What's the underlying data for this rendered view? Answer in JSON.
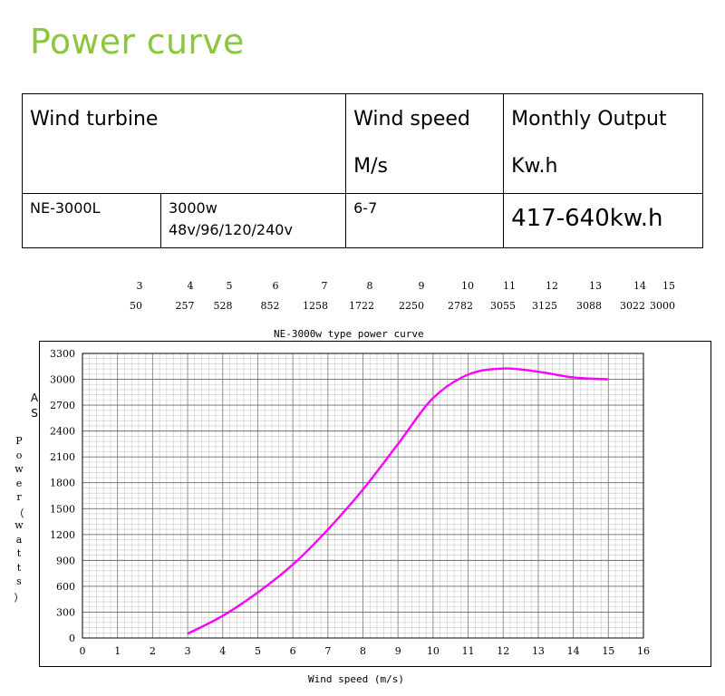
{
  "page": {
    "title": "Power curve"
  },
  "spec_table": {
    "headers": {
      "turbine": "Wind turbine",
      "speed": "Wind speed",
      "speed_unit": "M/s",
      "output": "Monthly Output",
      "output_unit": "Kw.h"
    },
    "row": {
      "model": "NE-3000L",
      "power": "3000w",
      "voltages": "48v/96/120/240v",
      "speed": "6-7",
      "output": "417-640kw.h"
    }
  },
  "reference": {
    "speeds": [
      "3",
      "4",
      "5",
      "6",
      "7",
      "8",
      "9",
      "10",
      "11",
      "12",
      "13",
      "14",
      "15"
    ],
    "powers": [
      "50",
      "257",
      "528",
      "852",
      "1258",
      "1722",
      "2250",
      "2782",
      "3055",
      "3125",
      "3088",
      "3022",
      "3000"
    ]
  },
  "chart_data": {
    "type": "line",
    "title": "NE-3000w type power curve",
    "xlabel": "Wind speed (m/s)",
    "ylabel": "Power（watts）",
    "y_axis_marker": "AS",
    "xlim": [
      0,
      16
    ],
    "ylim": [
      0,
      3300
    ],
    "x_ticks": [
      0,
      1,
      2,
      3,
      4,
      5,
      6,
      7,
      8,
      9,
      10,
      11,
      12,
      13,
      14,
      15,
      16
    ],
    "y_ticks": [
      0,
      300,
      600,
      900,
      1200,
      1500,
      1800,
      2100,
      2400,
      2700,
      3000,
      3300
    ],
    "grid": true,
    "line_color": "#ff00ff",
    "x": [
      3,
      4,
      5,
      6,
      7,
      8,
      9,
      10,
      11,
      12,
      13,
      14,
      15
    ],
    "y": [
      50,
      257,
      528,
      852,
      1258,
      1722,
      2250,
      2782,
      3055,
      3125,
      3088,
      3022,
      3000
    ]
  }
}
